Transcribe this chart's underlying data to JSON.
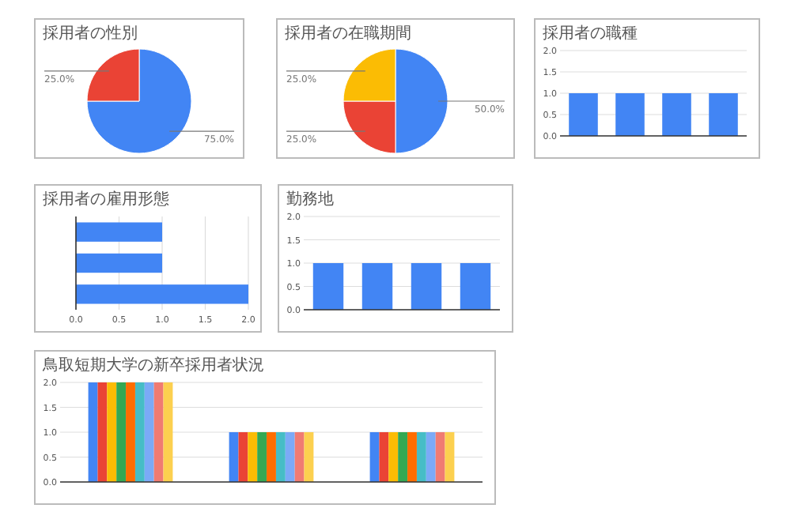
{
  "chart_data": [
    {
      "type": "pie",
      "title": "採用者の性別",
      "categories": [
        null,
        null
      ],
      "values": [
        75,
        25
      ],
      "colors": [
        "#4285f4",
        "#ea4335"
      ],
      "value_labels": [
        "75.0%",
        "25.0%"
      ]
    },
    {
      "type": "pie",
      "title": "採用者の在職期間",
      "categories": [
        null,
        null,
        null
      ],
      "values": [
        50,
        25,
        25
      ],
      "colors": [
        "#4285f4",
        "#ea4335",
        "#fbbc04"
      ],
      "value_labels": [
        "50.0%",
        "25.0%",
        "25.0%"
      ]
    },
    {
      "type": "bar",
      "title": "採用者の職種",
      "categories": [
        null,
        null,
        null,
        null
      ],
      "values": [
        1,
        1,
        1,
        1
      ],
      "color": "#4285f4",
      "ylim": [
        0,
        2
      ],
      "yticks": [
        {
          "value": 0,
          "label": "0.0"
        },
        {
          "value": 0.5,
          "label": "0.5"
        },
        {
          "value": 1,
          "label": "1.0"
        },
        {
          "value": 1.5,
          "label": "1.5"
        },
        {
          "value": 2,
          "label": "2.0"
        }
      ],
      "grid": "y"
    },
    {
      "type": "bar",
      "orientation": "horizontal",
      "title": "採用者の雇用形態",
      "categories": [
        null,
        null,
        null
      ],
      "values": [
        1,
        1,
        2
      ],
      "color": "#4285f4",
      "xlim": [
        0,
        2
      ],
      "xticks": [
        {
          "value": 0,
          "label": "0.0"
        },
        {
          "value": 0.5,
          "label": "0.5"
        },
        {
          "value": 1,
          "label": "1.0"
        },
        {
          "value": 1.5,
          "label": "1.5"
        },
        {
          "value": 2,
          "label": "2.0"
        }
      ],
      "grid": "x"
    },
    {
      "type": "bar",
      "title": "勤務地",
      "categories": [
        null,
        null,
        null,
        null
      ],
      "values": [
        1,
        1,
        1,
        1
      ],
      "color": "#4285f4",
      "ylim": [
        0,
        2
      ],
      "yticks": [
        {
          "value": 0,
          "label": "0.0"
        },
        {
          "value": 0.5,
          "label": "0.5"
        },
        {
          "value": 1,
          "label": "1.0"
        },
        {
          "value": 1.5,
          "label": "1.5"
        },
        {
          "value": 2,
          "label": "2.0"
        }
      ],
      "grid": "y"
    },
    {
      "type": "bar",
      "title": "鳥取短期大学の新卒採用者状況",
      "categories": [
        null,
        null,
        null
      ],
      "grid": "y",
      "ylim": [
        0,
        2
      ],
      "yticks": [
        {
          "value": 0,
          "label": "0.0"
        },
        {
          "value": 0.5,
          "label": "0.5"
        },
        {
          "value": 1,
          "label": "1.0"
        },
        {
          "value": 1.5,
          "label": "1.5"
        },
        {
          "value": 2,
          "label": "2.0"
        }
      ],
      "series": [
        {
          "color": "#4285f4",
          "values": [
            2,
            1,
            1
          ]
        },
        {
          "color": "#ea4335",
          "values": [
            2,
            1,
            1
          ]
        },
        {
          "color": "#fbbc04",
          "values": [
            2,
            1,
            1
          ]
        },
        {
          "color": "#34a853",
          "values": [
            2,
            1,
            1
          ]
        },
        {
          "color": "#ff6d01",
          "values": [
            2,
            1,
            1
          ]
        },
        {
          "color": "#46bdc6",
          "values": [
            2,
            1,
            1
          ]
        },
        {
          "color": "#7baaf7",
          "values": [
            2,
            1,
            1
          ]
        },
        {
          "color": "#f07b72",
          "values": [
            2,
            1,
            1
          ]
        },
        {
          "color": "#fcd04f",
          "values": [
            2,
            1,
            1
          ]
        }
      ]
    }
  ]
}
